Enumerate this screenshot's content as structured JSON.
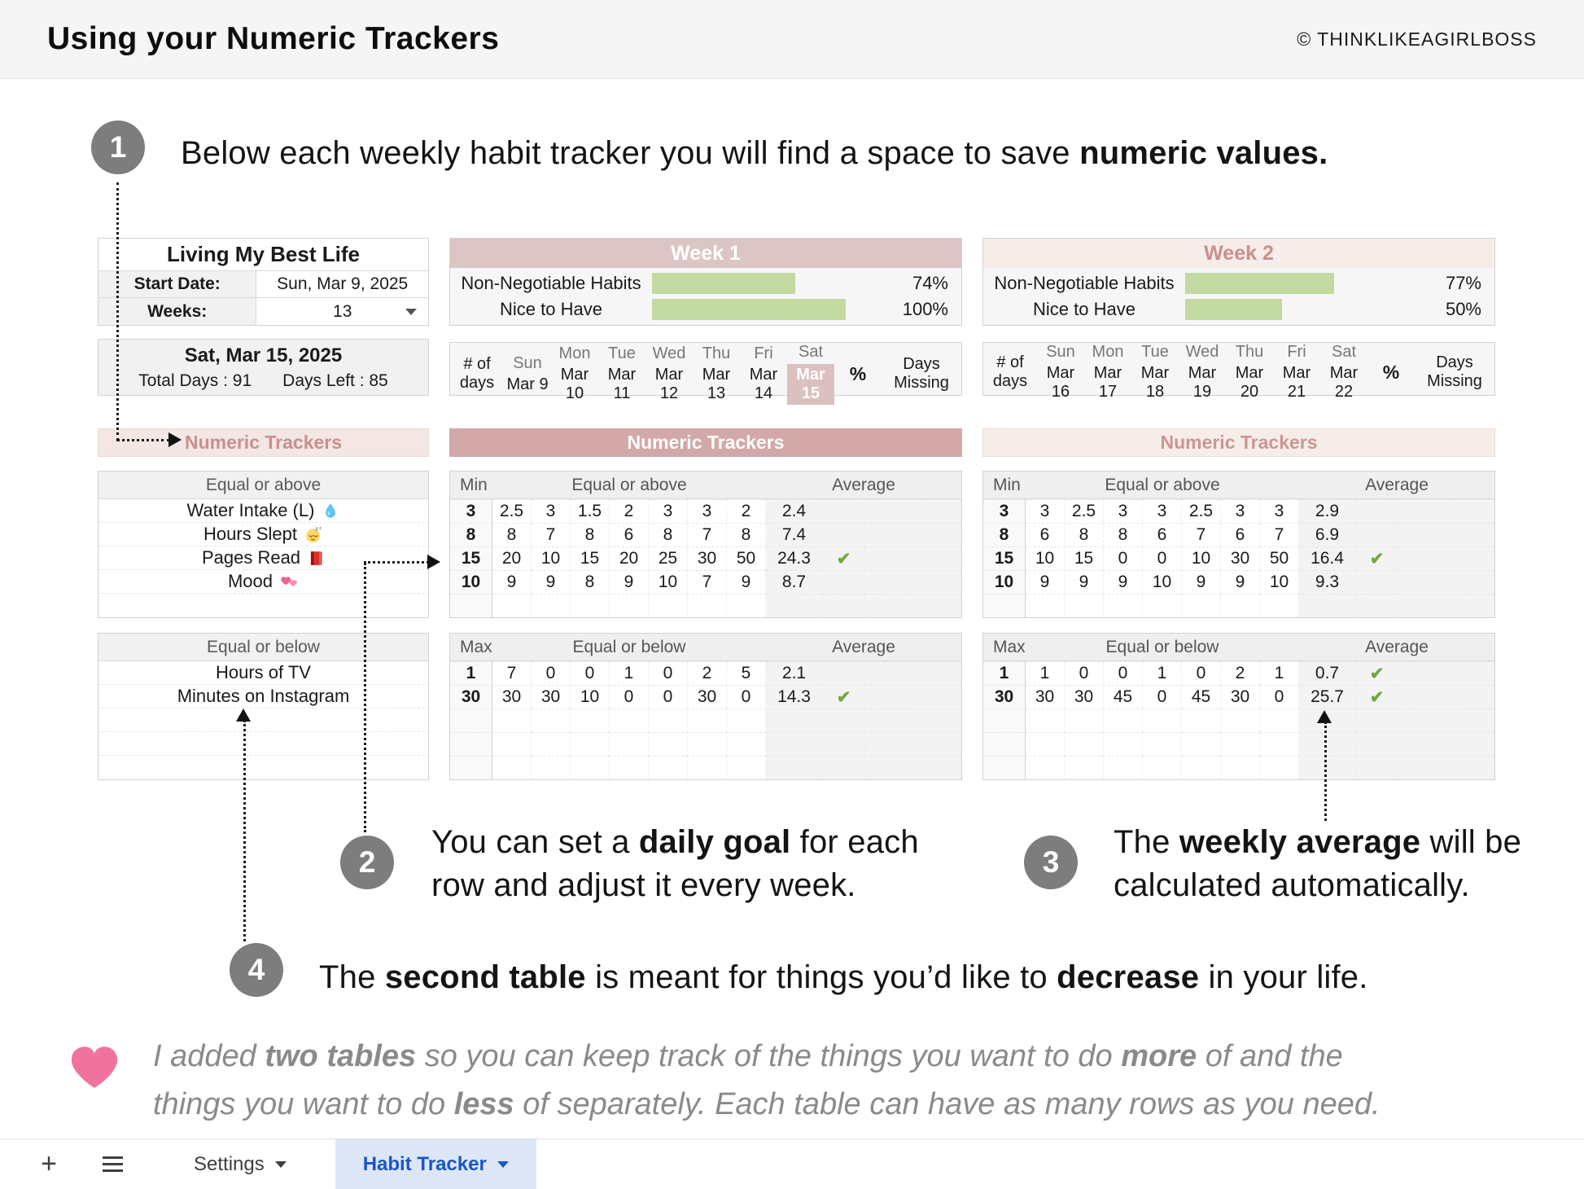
{
  "header": {
    "title": "Using your Numeric Trackers",
    "copyright": "© THINKLIKEAGIRLBOSS"
  },
  "steps": {
    "s1": {
      "num": "1",
      "pre": "Below each weekly habit tracker you will find a space to save ",
      "bold": "numeric values."
    },
    "s2": {
      "num": "2",
      "pre": "You can set a ",
      "bold": "daily goal",
      "post1": " for each",
      "post2": "row and adjust it every week."
    },
    "s3": {
      "num": "3",
      "pre": "The ",
      "bold": "weekly average",
      "post1": " will be",
      "post2": "calculated automatically."
    },
    "s4": {
      "num": "4",
      "pre": "The ",
      "bold1": "second table",
      "mid": " is meant for things you’d like to ",
      "bold2": "decrease",
      "post": " in your life."
    }
  },
  "note": {
    "pre": "I added ",
    "bold1": "two tables",
    "mid1": " so you can keep track of the things you want to do ",
    "bold2": "more",
    "post1": " of and the",
    "pre2": "things you want to do ",
    "bold3": "less",
    "post2": " of separately. Each table can have as many rows as you need."
  },
  "summary": {
    "title": "Living My Best Life",
    "start_date_label": "Start Date:",
    "start_date": "Sun, Mar 9, 2025",
    "weeks_label": "Weeks:",
    "weeks": "13",
    "today": "Sat, Mar 15, 2025",
    "total_days": "Total Days : 91",
    "days_left": "Days Left : 85"
  },
  "weeks": [
    {
      "title": "Week 1",
      "habits": [
        {
          "label": "Non-Negotiable Habits",
          "pct": 74,
          "pct_label": "74%"
        },
        {
          "label": "Nice to Have",
          "pct": 100,
          "pct_label": "100%"
        }
      ],
      "days_corner": "# of days",
      "days": [
        {
          "name": "Sun",
          "date": "Mar 9"
        },
        {
          "name": "Mon",
          "date": "Mar 10"
        },
        {
          "name": "Tue",
          "date": "Mar 11"
        },
        {
          "name": "Wed",
          "date": "Mar 12"
        },
        {
          "name": "Thu",
          "date": "Mar 13"
        },
        {
          "name": "Fri",
          "date": "Mar 14"
        },
        {
          "name": "Sat",
          "date": "Mar 15",
          "today": true
        }
      ],
      "pct_col": "%",
      "missing_col": "Days Missing"
    },
    {
      "title": "Week 2",
      "habits": [
        {
          "label": "Non-Negotiable Habits",
          "pct": 77,
          "pct_label": "77%"
        },
        {
          "label": "Nice to Have",
          "pct": 50,
          "pct_label": "50%"
        }
      ],
      "days_corner": "# of days",
      "days": [
        {
          "name": "Sun",
          "date": "Mar 16"
        },
        {
          "name": "Mon",
          "date": "Mar 17"
        },
        {
          "name": "Tue",
          "date": "Mar 18"
        },
        {
          "name": "Wed",
          "date": "Mar 19"
        },
        {
          "name": "Thu",
          "date": "Mar 20"
        },
        {
          "name": "Fri",
          "date": "Mar 21"
        },
        {
          "name": "Sat",
          "date": "Mar 22"
        }
      ],
      "pct_col": "%",
      "missing_col": "Days Missing"
    }
  ],
  "trackers": {
    "left_label": "Numeric Trackers",
    "mid_label": "Numeric Trackers",
    "right_label": "Numeric Trackers",
    "above": {
      "names_header": "Equal or above",
      "names": [
        {
          "label": "Water Intake (L)",
          "icon": "droplet-icon"
        },
        {
          "label": "Hours Slept",
          "icon": "sleeping-face-icon"
        },
        {
          "label": "Pages Read",
          "icon": "red-book-icon"
        },
        {
          "label": "Mood",
          "icon": "two-hearts-icon"
        },
        {
          "label": "",
          "icon": ""
        }
      ],
      "goal_header": "Min",
      "span_header": "Equal or above",
      "avg_header": "Average",
      "week1_rows": [
        {
          "goal": "3",
          "vals": [
            "2.5",
            "3",
            "1.5",
            "2",
            "3",
            "3",
            "2"
          ],
          "avg": "2.4",
          "check": false
        },
        {
          "goal": "8",
          "vals": [
            "8",
            "7",
            "8",
            "6",
            "8",
            "7",
            "8"
          ],
          "avg": "7.4",
          "check": false
        },
        {
          "goal": "15",
          "vals": [
            "20",
            "10",
            "15",
            "20",
            "25",
            "30",
            "50"
          ],
          "avg": "24.3",
          "check": true
        },
        {
          "goal": "10",
          "vals": [
            "9",
            "9",
            "8",
            "9",
            "10",
            "7",
            "9"
          ],
          "avg": "8.7",
          "check": false
        },
        {
          "goal": "",
          "vals": [
            "",
            "",
            "",
            "",
            "",
            "",
            ""
          ],
          "avg": "",
          "check": false
        }
      ],
      "week2_rows": [
        {
          "goal": "3",
          "vals": [
            "3",
            "2.5",
            "3",
            "3",
            "2.5",
            "3",
            "3"
          ],
          "avg": "2.9",
          "check": false
        },
        {
          "goal": "8",
          "vals": [
            "6",
            "8",
            "8",
            "6",
            "7",
            "6",
            "7"
          ],
          "avg": "6.9",
          "check": false
        },
        {
          "goal": "15",
          "vals": [
            "10",
            "15",
            "0",
            "0",
            "10",
            "30",
            "50"
          ],
          "avg": "16.4",
          "check": true
        },
        {
          "goal": "10",
          "vals": [
            "9",
            "9",
            "9",
            "10",
            "9",
            "9",
            "10"
          ],
          "avg": "9.3",
          "check": false
        },
        {
          "goal": "",
          "vals": [
            "",
            "",
            "",
            "",
            "",
            "",
            ""
          ],
          "avg": "",
          "check": false
        }
      ]
    },
    "below": {
      "names_header": "Equal or below",
      "names": [
        {
          "label": "Hours of TV",
          "icon": ""
        },
        {
          "label": "Minutes on Instagram",
          "icon": ""
        },
        {
          "label": "",
          "icon": ""
        },
        {
          "label": "",
          "icon": ""
        },
        {
          "label": "",
          "icon": ""
        }
      ],
      "goal_header": "Max",
      "span_header": "Equal or below",
      "avg_header": "Average",
      "week1_rows": [
        {
          "goal": "1",
          "vals": [
            "7",
            "0",
            "0",
            "1",
            "0",
            "2",
            "5"
          ],
          "avg": "2.1",
          "check": false
        },
        {
          "goal": "30",
          "vals": [
            "30",
            "30",
            "10",
            "0",
            "0",
            "30",
            "0"
          ],
          "avg": "14.3",
          "check": true
        },
        {
          "goal": "",
          "vals": [
            "",
            "",
            "",
            "",
            "",
            "",
            ""
          ],
          "avg": "",
          "check": false
        },
        {
          "goal": "",
          "vals": [
            "",
            "",
            "",
            "",
            "",
            "",
            ""
          ],
          "avg": "",
          "check": false
        },
        {
          "goal": "",
          "vals": [
            "",
            "",
            "",
            "",
            "",
            "",
            ""
          ],
          "avg": "",
          "check": false
        }
      ],
      "week2_rows": [
        {
          "goal": "1",
          "vals": [
            "1",
            "0",
            "0",
            "1",
            "0",
            "2",
            "1"
          ],
          "avg": "0.7",
          "check": true
        },
        {
          "goal": "30",
          "vals": [
            "30",
            "30",
            "45",
            "0",
            "45",
            "30",
            "0"
          ],
          "avg": "25.7",
          "check": true
        },
        {
          "goal": "",
          "vals": [
            "",
            "",
            "",
            "",
            "",
            "",
            ""
          ],
          "avg": "",
          "check": false
        },
        {
          "goal": "",
          "vals": [
            "",
            "",
            "",
            "",
            "",
            "",
            ""
          ],
          "avg": "",
          "check": false
        },
        {
          "goal": "",
          "vals": [
            "",
            "",
            "",
            "",
            "",
            "",
            ""
          ],
          "avg": "",
          "check": false
        }
      ]
    }
  },
  "tabbar": {
    "add": "+",
    "tabs": [
      {
        "label": "Settings",
        "active": false
      },
      {
        "label": "Habit Tracker",
        "active": true
      }
    ]
  },
  "colors": {
    "week_active_header": "#dcc5c5",
    "week_inactive_header": "#f6ece9",
    "trackers_band": "#d2a8a8",
    "today_highlight": "#dcbfbf",
    "progress_green": "#c3d9a2",
    "check_green": "#76a73f",
    "active_tab_blue": "#1956c8",
    "active_tab_bg": "#dde6f7",
    "heart_pink": "#f0739e"
  }
}
